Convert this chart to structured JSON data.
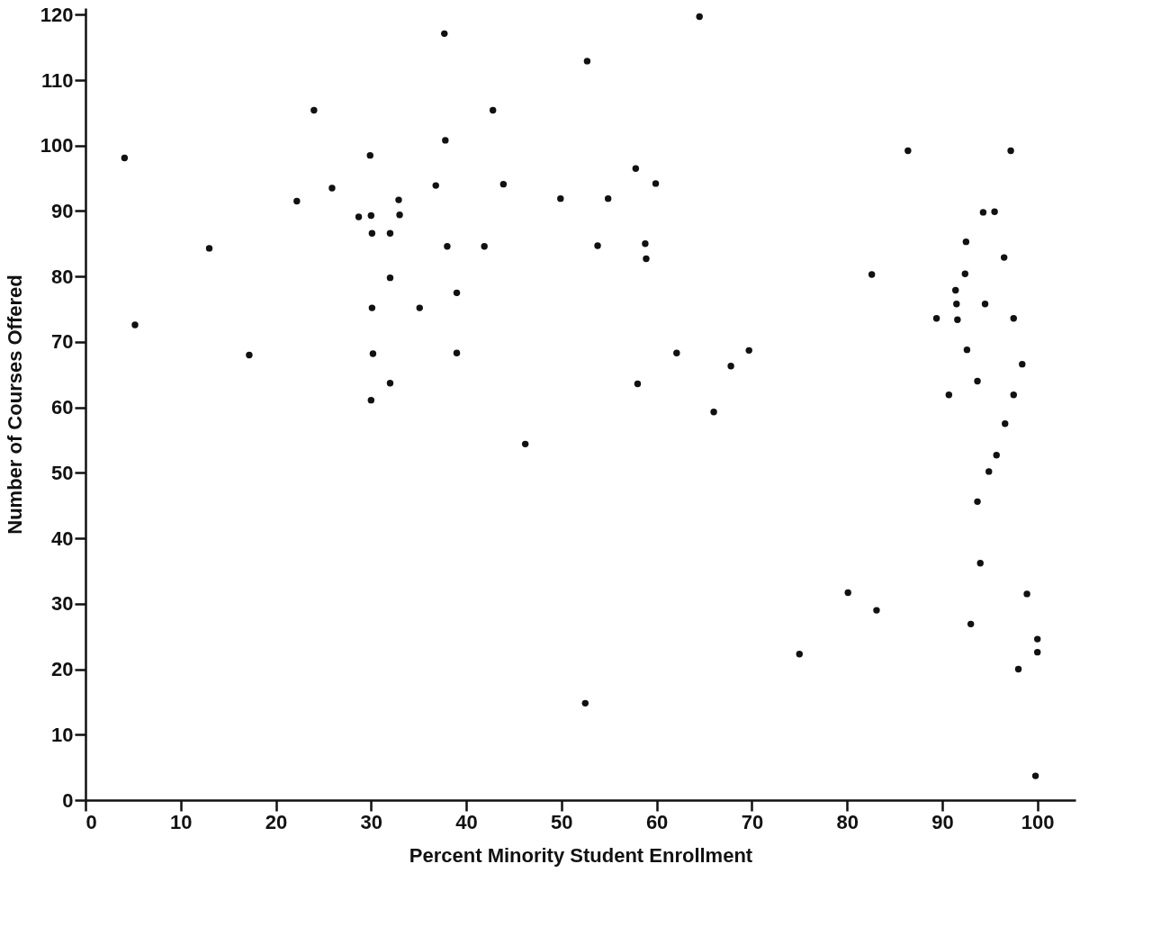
{
  "chart_data": {
    "type": "scatter",
    "xlabel": "Percent Minority Student Enrollment",
    "ylabel": "Number of Courses Offered",
    "xlim": [
      0,
      104
    ],
    "ylim": [
      0,
      121
    ],
    "xticks": [
      0,
      10,
      20,
      30,
      40,
      50,
      60,
      70,
      80,
      90,
      100
    ],
    "yticks": [
      0,
      10,
      20,
      30,
      40,
      50,
      60,
      70,
      80,
      90,
      100,
      110,
      120
    ],
    "grid": false,
    "marker": "circle",
    "series": [
      {
        "color": "#111111",
        "x": [
          4.1,
          5.2,
          13.0,
          17.2,
          22.2,
          24.0,
          25.9,
          28.7,
          29.9,
          30.0,
          30.1,
          30.1,
          30.2,
          30.0,
          32.0,
          32.0,
          32.0,
          32.9,
          33.0,
          35.1,
          36.8,
          37.7,
          37.8,
          38.0,
          39.0,
          39.0,
          41.9,
          42.8,
          43.9,
          46.2,
          49.9,
          52.7,
          52.5,
          53.8,
          54.9,
          57.8,
          58.0,
          58.8,
          58.9,
          59.9,
          62.1,
          64.5,
          66.0,
          67.8,
          69.7,
          75.0,
          80.1,
          82.6,
          83.1,
          86.4,
          89.4,
          90.7,
          91.4,
          91.5,
          91.6,
          92.5,
          92.4,
          92.6,
          93.0,
          93.7,
          93.7,
          94.0,
          94.3,
          94.5,
          94.9,
          95.5,
          95.7,
          96.5,
          96.6,
          97.2,
          97.5,
          97.5,
          98.0,
          98.4,
          98.9,
          100.0,
          100.0,
          99.8
        ],
        "values": [
          98.1,
          72.6,
          84.3,
          68.0,
          91.5,
          105.4,
          93.5,
          89.1,
          98.5,
          89.3,
          86.6,
          75.2,
          68.2,
          61.1,
          86.6,
          79.8,
          63.7,
          91.7,
          89.4,
          75.2,
          93.9,
          117.1,
          100.8,
          84.6,
          77.5,
          68.3,
          84.6,
          105.4,
          94.1,
          54.4,
          91.9,
          112.9,
          14.8,
          84.7,
          91.9,
          96.5,
          63.6,
          85.0,
          82.7,
          94.2,
          68.3,
          119.7,
          59.3,
          66.3,
          68.7,
          22.3,
          31.7,
          80.3,
          29.0,
          99.2,
          73.6,
          61.9,
          77.9,
          75.8,
          73.4,
          85.3,
          80.4,
          68.8,
          26.9,
          64.0,
          45.6,
          36.2,
          89.8,
          75.8,
          50.2,
          89.9,
          52.7,
          82.9,
          57.5,
          99.2,
          73.6,
          61.9,
          20.0,
          66.6,
          31.5,
          24.6,
          22.6,
          3.7
        ]
      }
    ]
  }
}
